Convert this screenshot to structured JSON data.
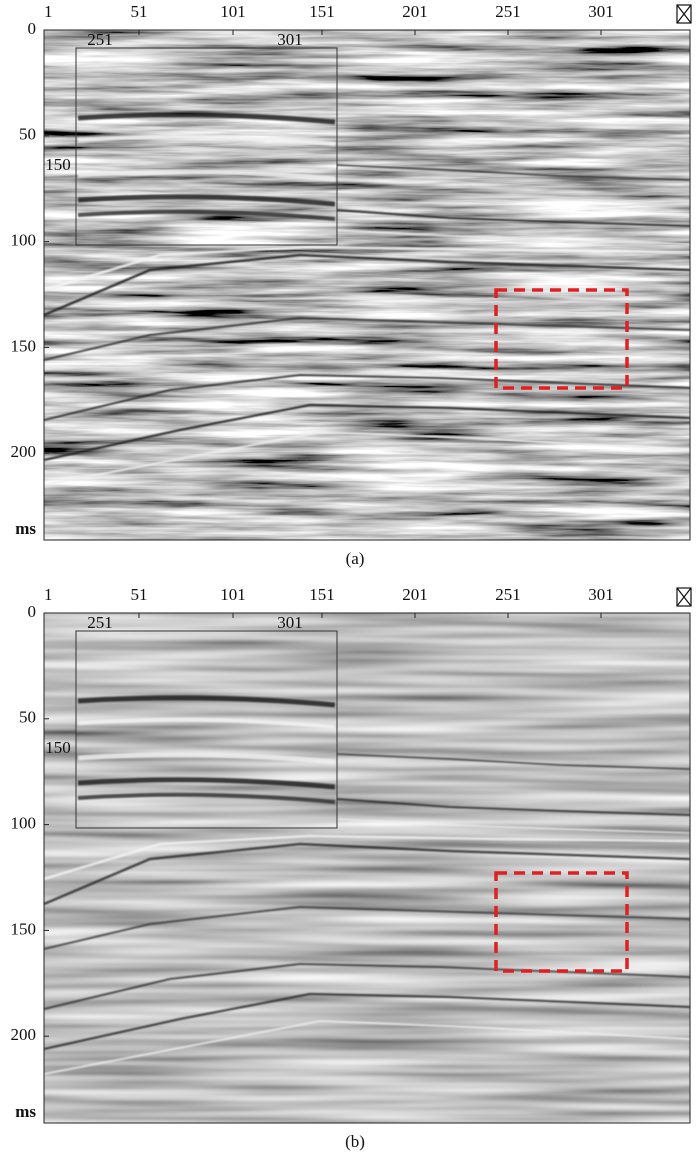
{
  "panels": [
    {
      "x_ticks": [
        "1",
        "51",
        "101",
        "151",
        "201",
        "251",
        "301"
      ],
      "y_ticks": [
        "0",
        "50",
        "100",
        "150",
        "200"
      ],
      "y_unit": "ms",
      "inset_x_ticks": [
        "251",
        "301"
      ],
      "inset_y_tick": "150",
      "caption": "(a)"
    },
    {
      "x_ticks": [
        "1",
        "51",
        "101",
        "151",
        "201",
        "251",
        "301"
      ],
      "y_ticks": [
        "0",
        "50",
        "100",
        "150",
        "200"
      ],
      "y_unit": "ms",
      "inset_x_ticks": [
        "251",
        "301"
      ],
      "inset_y_tick": "150",
      "caption": "(b)"
    }
  ]
}
